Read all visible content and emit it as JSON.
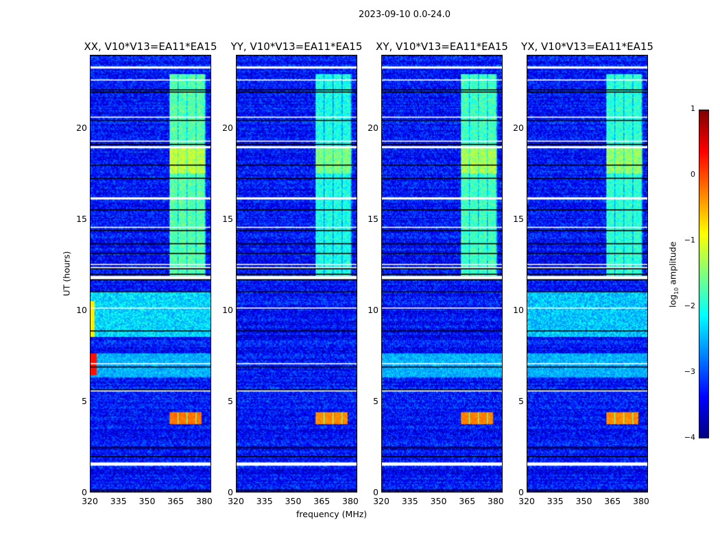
{
  "chart_data": {
    "type": "heatmap",
    "title": "2023-09-10 0.0-24.0",
    "xlabel": "frequency (MHz)",
    "ylabel": "UT (hours)",
    "xlim": [
      320,
      383.6
    ],
    "ylim": [
      0,
      24
    ],
    "xticks": [
      "320",
      "335",
      "350",
      "365",
      "380"
    ],
    "yticks": [
      "0",
      "5",
      "10",
      "15",
      "20"
    ],
    "colorbar": {
      "label": "log10 amplitude",
      "label_main": "log",
      "label_sub": "10",
      "label_tail": " amplitude",
      "range": [
        -4,
        1
      ],
      "ticks": [
        "1",
        "0",
        "−1",
        "−2",
        "−3",
        "−4"
      ],
      "colormap": "jet"
    },
    "panels": [
      {
        "title": "XX, V10*V13=EA11*EA15",
        "band_level": -1.7,
        "burst_level": -0.2,
        "low_freq_rfi": true,
        "broadband_level": -2.3
      },
      {
        "title": "YY, V10*V13=EA11*EA15",
        "band_level": -2.0,
        "burst_level": -0.3,
        "low_freq_rfi": false,
        "broadband_level": -3.0
      },
      {
        "title": "XY, V10*V13=EA11*EA15",
        "band_level": -1.8,
        "burst_level": -0.25,
        "low_freq_rfi": false,
        "broadband_level": -2.8
      },
      {
        "title": "YX, V10*V13=EA11*EA15",
        "band_level": -1.9,
        "burst_level": -0.3,
        "low_freq_rfi": false,
        "broadband_level": -2.4
      }
    ],
    "rfi_band_mhz": [
      362,
      381
    ],
    "burst_hours": [
      3.7,
      4.4
    ],
    "band_hours": [
      11.9,
      23.0
    ],
    "flagged_hours": [
      [
        1.45,
        1.6
      ],
      [
        11.7,
        11.9
      ],
      [
        12.3,
        12.35
      ],
      [
        12.5,
        12.55
      ],
      [
        16.1,
        16.2
      ],
      [
        18.9,
        19.0
      ],
      [
        19.25,
        19.3
      ],
      [
        20.6,
        20.65
      ],
      [
        22.6,
        22.7
      ],
      [
        23.3,
        23.4
      ],
      [
        5.5,
        5.55
      ],
      [
        7.0,
        7.05
      ],
      [
        10.1,
        10.15
      ],
      [
        14.5,
        14.55
      ]
    ]
  }
}
